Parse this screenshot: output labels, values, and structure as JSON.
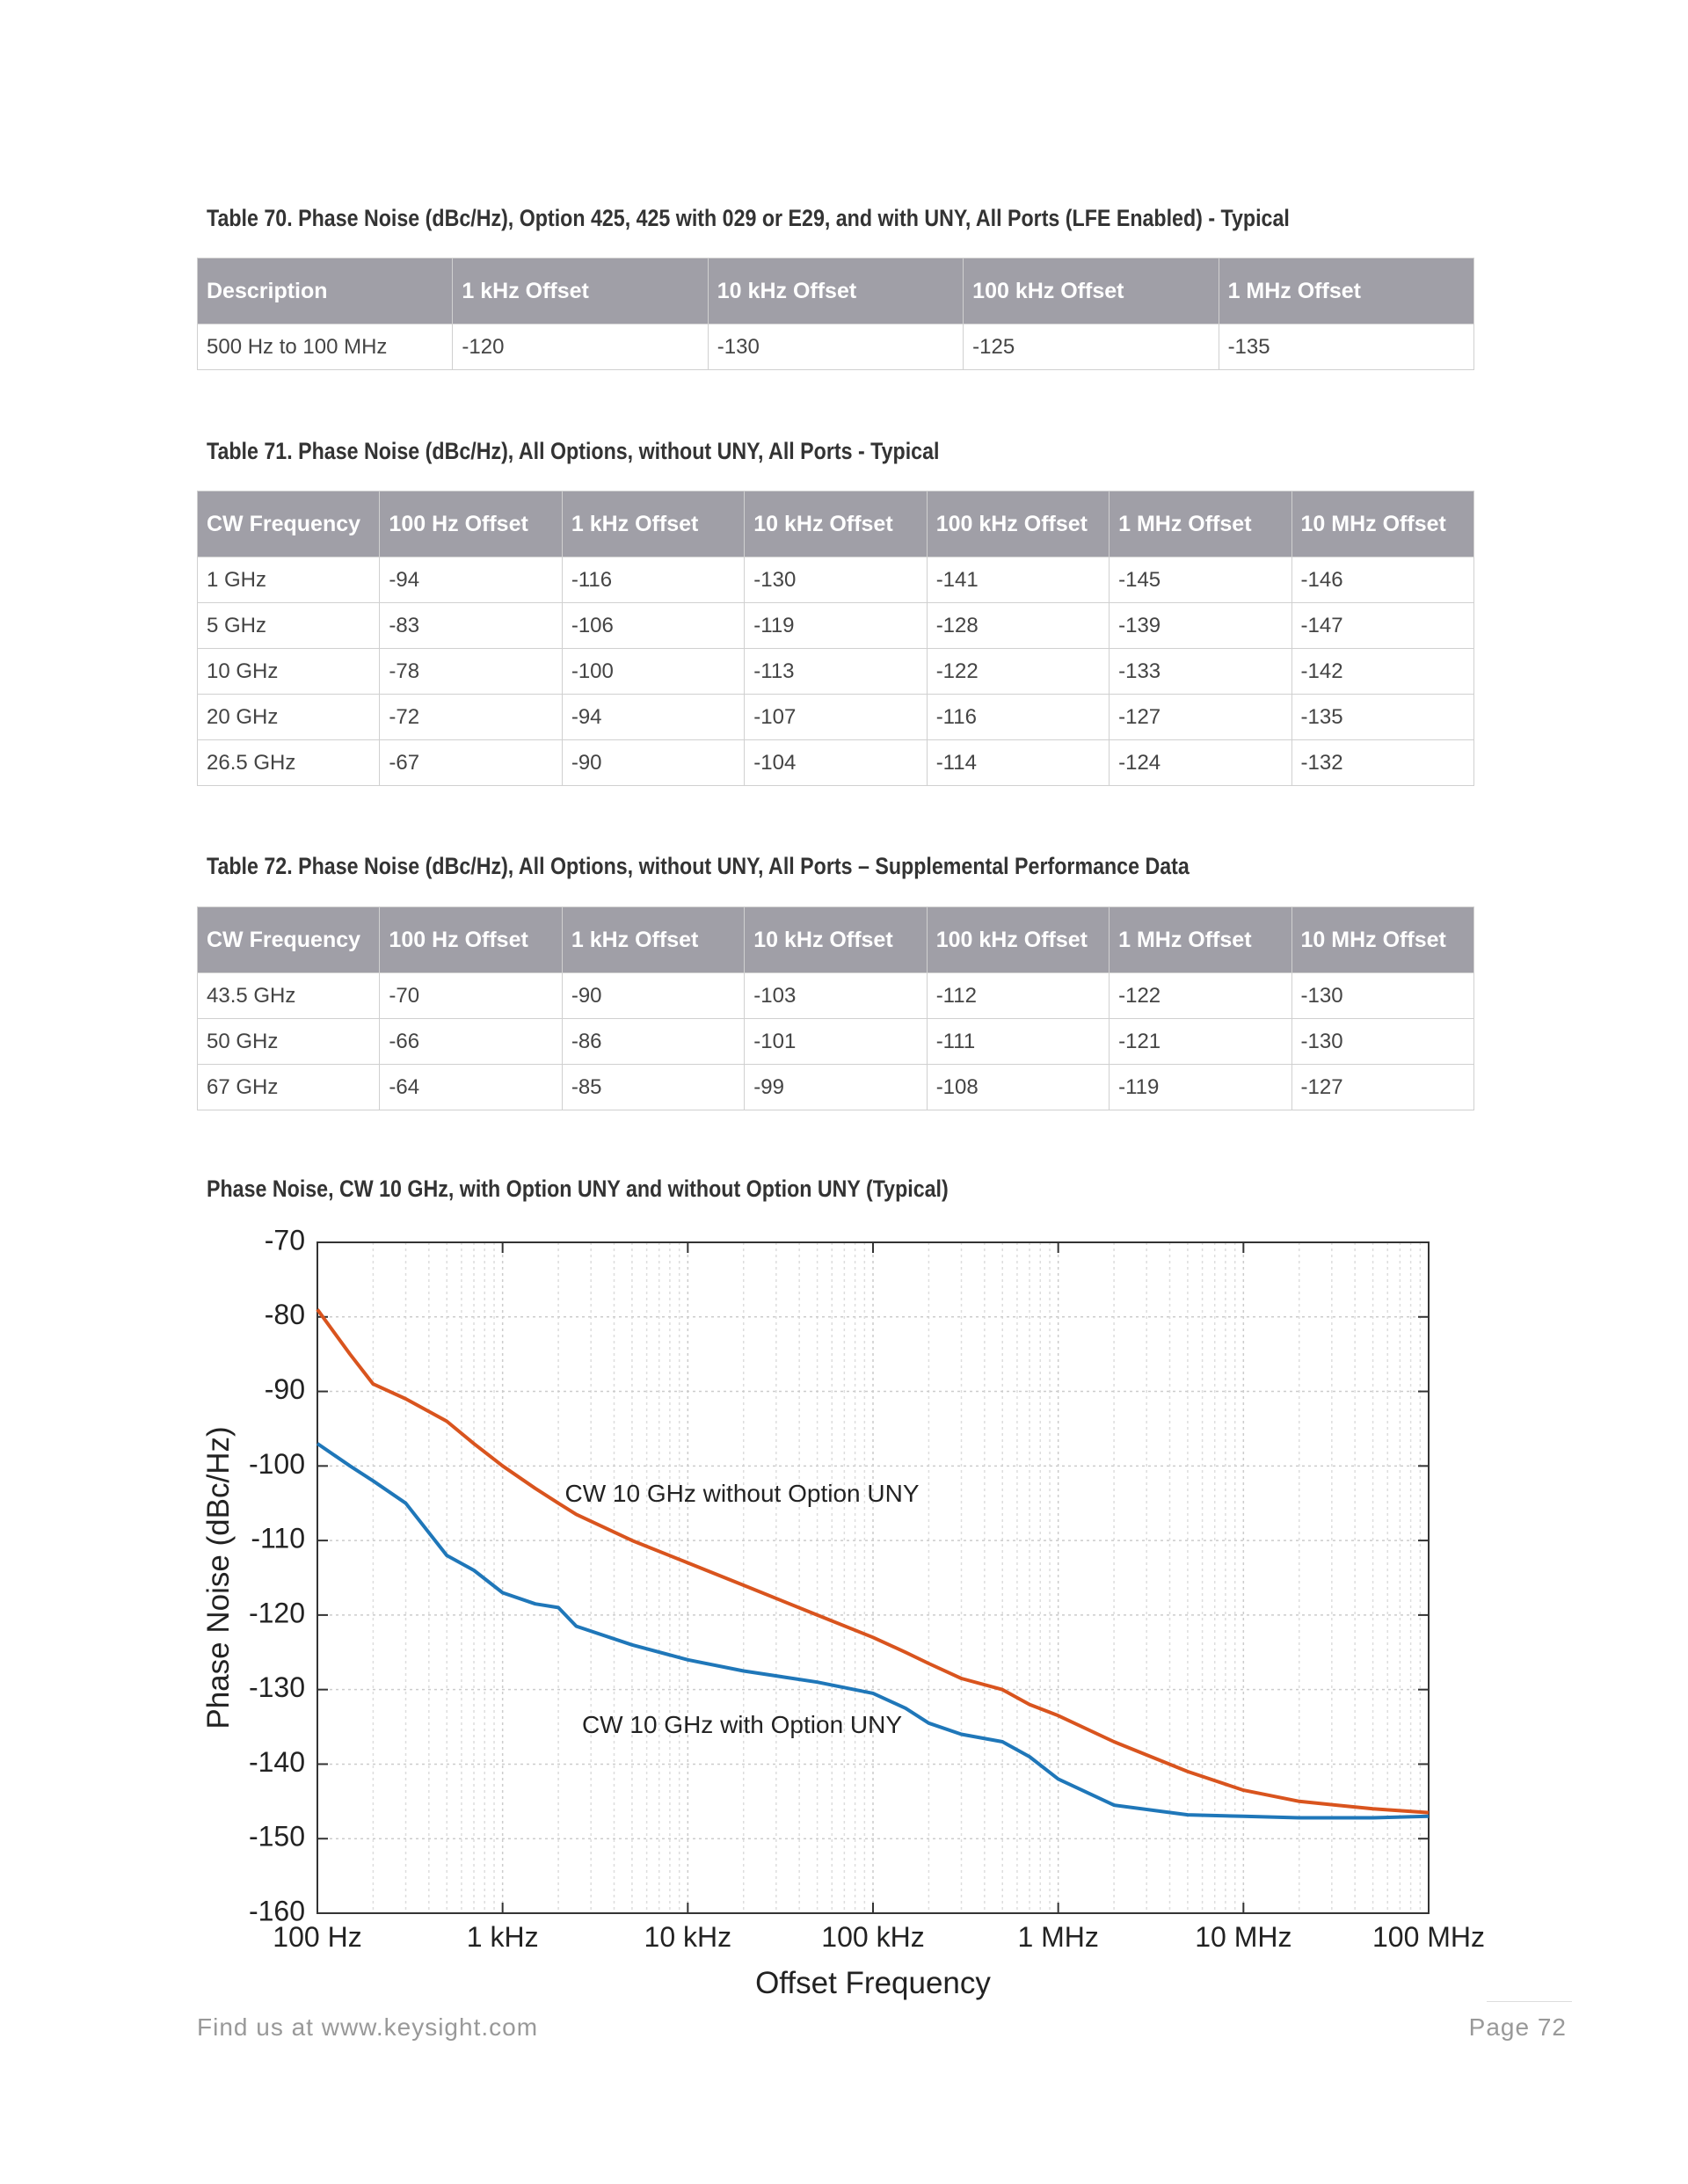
{
  "tables": [
    {
      "title": "Table 70. Phase Noise (dBc/Hz), Option 425, 425 with 029 or E29, and with UNY, All Ports (LFE Enabled) - Typical",
      "header": [
        "Description",
        "1 kHz Offset",
        "10 kHz Offset",
        "100 kHz Offset",
        "1 MHz Offset"
      ],
      "rows": [
        [
          "500 Hz to 100 MHz",
          -120,
          -130,
          -125,
          -135
        ]
      ]
    },
    {
      "title": "Table 71. Phase Noise (dBc/Hz), All Options, without UNY, All Ports - Typical",
      "header": [
        "CW Frequency",
        "100 Hz Offset",
        "1 kHz Offset",
        "10 kHz Offset",
        "100 kHz Offset",
        "1 MHz Offset",
        "10 MHz Offset"
      ],
      "rows": [
        [
          "1 GHz",
          -94,
          -116,
          -130,
          -141,
          -145,
          -146
        ],
        [
          "5 GHz",
          -83,
          -106,
          -119,
          -128,
          -139,
          -147
        ],
        [
          "10 GHz",
          -78,
          -100,
          -113,
          -122,
          -133,
          -142
        ],
        [
          "20 GHz",
          -72,
          -94,
          -107,
          -116,
          -127,
          -135
        ],
        [
          "26.5 GHz",
          -67,
          -90,
          -104,
          -114,
          -124,
          -132
        ]
      ]
    },
    {
      "title": "Table 72. Phase Noise (dBc/Hz), All Options, without UNY, All Ports – Supplemental Performance Data",
      "header": [
        "CW Frequency",
        "100 Hz Offset",
        "1 kHz Offset",
        "10 kHz Offset",
        "100 kHz Offset",
        "1 MHz Offset",
        "10 MHz Offset"
      ],
      "rows": [
        [
          "43.5 GHz",
          -70,
          -90,
          -103,
          -112,
          -122,
          -130
        ],
        [
          "50 GHz",
          -66,
          -86,
          -101,
          -111,
          -121,
          -130
        ],
        [
          "67 GHz",
          -64,
          -85,
          -99,
          -108,
          -119,
          -127
        ]
      ]
    }
  ],
  "chart_data": {
    "type": "line",
    "title": "Phase Noise, CW 10 GHz, with Option UNY and without Option UNY (Typical)",
    "xlabel": "Offset Frequency",
    "ylabel": "Phase Noise (dBc/Hz)",
    "xscale": "log",
    "grid": true,
    "x": [
      100,
      150,
      200,
      300,
      500,
      700,
      1000,
      1500,
      2000,
      2500,
      5000,
      10000,
      20000,
      50000,
      100000,
      150000,
      200000,
      300000,
      500000,
      700000,
      1000000,
      2000000,
      5000000,
      10000000,
      20000000,
      50000000,
      100000000
    ],
    "series": [
      {
        "name": "CW 10 GHz without Option UNY",
        "color": "#d9541e",
        "values": [
          -79,
          -85,
          -89,
          -91,
          -94,
          -97,
          -100,
          -103,
          -105,
          -106.5,
          -110,
          -113,
          -116,
          -120,
          -123,
          -125,
          -126.5,
          -128.5,
          -130,
          -132,
          -133.5,
          -137,
          -141,
          -143.5,
          -145,
          -146,
          -146.5
        ]
      },
      {
        "name": "CW 10 GHz with Option UNY",
        "color": "#1f77b9",
        "values": [
          -97,
          -100,
          -102,
          -105,
          -112,
          -114,
          -117,
          -118.5,
          -119,
          -121.5,
          -124,
          -126,
          -127.5,
          -129,
          -130.5,
          -132.5,
          -134.5,
          -136,
          -137,
          -139,
          -142,
          -145.5,
          -146.8,
          -147,
          -147.2,
          -147.2,
          -147
        ]
      }
    ],
    "xlim": [
      100,
      100000000
    ],
    "xticks": [
      {
        "value": 100,
        "label": "100 Hz"
      },
      {
        "value": 1000,
        "label": "1 kHz"
      },
      {
        "value": 10000,
        "label": "10 kHz"
      },
      {
        "value": 100000,
        "label": "100 kHz"
      },
      {
        "value": 1000000,
        "label": "1 MHz"
      },
      {
        "value": 10000000,
        "label": "10 MHz"
      },
      {
        "value": 100000000,
        "label": "100 MHz"
      }
    ],
    "ylim": [
      -160,
      -70
    ],
    "yticks": [
      -160,
      -150,
      -140,
      -130,
      -120,
      -110,
      -100,
      -90,
      -80,
      -70
    ]
  },
  "footer": {
    "left": "Find us at www.keysight.com",
    "right": "Page 72"
  }
}
